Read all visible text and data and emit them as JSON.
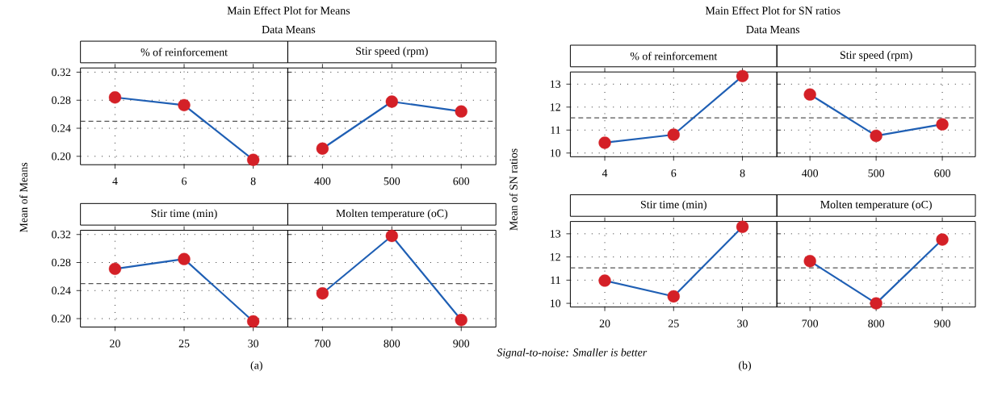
{
  "chart_data": [
    {
      "type": "line",
      "title": "% of reinforcement",
      "ylabel": "Mean of Means",
      "annotations": [
        "Main Effect Plot for Means",
        "Data Means",
        "(a)"
      ],
      "categories": [
        "4",
        "6",
        "8"
      ],
      "series": [
        {
          "color": "#1f5fb4",
          "colors": [
            "#d42027",
            "#d42027",
            "#d42027"
          ],
          "values": [
            0.284,
            0.273,
            0.195
          ]
        }
      ],
      "ylim": [
        0.188,
        0.326
      ],
      "yticks": [
        {
          "value": 0.2,
          "label": "0.20"
        },
        {
          "value": 0.24,
          "label": "0.24"
        },
        {
          "value": 0.28,
          "label": "0.28"
        },
        {
          "value": 0.32,
          "label": "0.32"
        }
      ],
      "ref_lines": [
        {
          "axis": "y",
          "value": 0.25,
          "color": "#555555",
          "line_style": "dashed"
        }
      ],
      "grid": true,
      "marker": "circle",
      "line_style": "solid"
    },
    {
      "type": "line",
      "title": "Stir speed (rpm)",
      "categories": [
        "400",
        "500",
        "600"
      ],
      "series": [
        {
          "color": "#1f5fb4",
          "colors": [
            "#d42027",
            "#d42027",
            "#d42027"
          ],
          "values": [
            0.211,
            0.278,
            0.264
          ]
        }
      ],
      "ylim": [
        0.188,
        0.326
      ],
      "yticks": [
        {
          "value": 0.2,
          "label": null
        },
        {
          "value": 0.24,
          "label": null
        },
        {
          "value": 0.28,
          "label": null
        },
        {
          "value": 0.32,
          "label": null
        }
      ],
      "ref_lines": [
        {
          "axis": "y",
          "value": 0.25,
          "color": "#555555",
          "line_style": "dashed"
        }
      ],
      "grid": true,
      "marker": "circle",
      "line_style": "solid",
      "tick_labels": "x"
    },
    {
      "type": "line",
      "title": "Stir time (min)",
      "categories": [
        "20",
        "25",
        "30"
      ],
      "series": [
        {
          "color": "#1f5fb4",
          "colors": [
            "#d42027",
            "#d42027",
            "#d42027"
          ],
          "values": [
            0.271,
            0.285,
            0.196
          ]
        }
      ],
      "ylim": [
        0.188,
        0.326
      ],
      "yticks": [
        {
          "value": 0.2,
          "label": "0.20"
        },
        {
          "value": 0.24,
          "label": "0.24"
        },
        {
          "value": 0.28,
          "label": "0.28"
        },
        {
          "value": 0.32,
          "label": "0.32"
        }
      ],
      "ref_lines": [
        {
          "axis": "y",
          "value": 0.25,
          "color": "#555555",
          "line_style": "dashed"
        }
      ],
      "grid": true,
      "marker": "circle",
      "line_style": "solid"
    },
    {
      "type": "line",
      "title": "Molten temperature (oC)",
      "categories": [
        "700",
        "800",
        "900"
      ],
      "series": [
        {
          "color": "#1f5fb4",
          "colors": [
            "#d42027",
            "#d42027",
            "#d42027"
          ],
          "values": [
            0.236,
            0.318,
            0.198
          ]
        }
      ],
      "ylim": [
        0.188,
        0.326
      ],
      "yticks": [
        {
          "value": 0.2,
          "label": null
        },
        {
          "value": 0.24,
          "label": null
        },
        {
          "value": 0.28,
          "label": null
        },
        {
          "value": 0.32,
          "label": null
        }
      ],
      "ref_lines": [
        {
          "axis": "y",
          "value": 0.25,
          "color": "#555555",
          "line_style": "dashed"
        }
      ],
      "grid": true,
      "marker": "circle",
      "line_style": "solid",
      "tick_labels": "x"
    },
    {
      "type": "line",
      "title": "% of reinforcement",
      "ylabel": "Mean of SN ratios",
      "annotations": [
        "Main Effect Plot for SN ratios",
        "Data Means",
        "Signal-to-noise: Smaller is better",
        "(b)"
      ],
      "categories": [
        "4",
        "6",
        "8"
      ],
      "series": [
        {
          "color": "#1f5fb4",
          "colors": [
            "#d42027",
            "#d42027",
            "#d42027"
          ],
          "values": [
            10.45,
            10.8,
            13.35
          ]
        }
      ],
      "ylim": [
        9.84,
        13.53
      ],
      "yticks": [
        10,
        11,
        12,
        13
      ],
      "ref_lines": [
        {
          "axis": "y",
          "value": 11.53,
          "color": "#555555",
          "line_style": "dashed"
        }
      ],
      "grid": true,
      "marker": "circle",
      "line_style": "solid"
    },
    {
      "type": "line",
      "title": "Stir speed (rpm)",
      "categories": [
        "400",
        "500",
        "600"
      ],
      "series": [
        {
          "color": "#1f5fb4",
          "colors": [
            "#d42027",
            "#d42027",
            "#d42027"
          ],
          "values": [
            12.55,
            10.75,
            11.25
          ]
        }
      ],
      "ylim": [
        9.84,
        13.53
      ],
      "yticks": [
        10,
        11,
        12,
        13
      ],
      "ref_lines": [
        {
          "axis": "y",
          "value": 11.53,
          "color": "#555555",
          "line_style": "dashed"
        }
      ],
      "grid": true,
      "marker": "circle",
      "line_style": "solid",
      "tick_labels": "x"
    },
    {
      "type": "line",
      "title": "Stir time (min)",
      "categories": [
        "20",
        "25",
        "30"
      ],
      "series": [
        {
          "color": "#1f5fb4",
          "colors": [
            "#d42027",
            "#d42027",
            "#d42027"
          ],
          "values": [
            10.98,
            10.3,
            13.3
          ]
        }
      ],
      "ylim": [
        9.84,
        13.53
      ],
      "yticks": [
        10,
        11,
        12,
        13
      ],
      "ref_lines": [
        {
          "axis": "y",
          "value": 11.53,
          "color": "#555555",
          "line_style": "dashed"
        }
      ],
      "grid": true,
      "marker": "circle",
      "line_style": "solid"
    },
    {
      "type": "line",
      "title": "Molten temperature (oC)",
      "categories": [
        "700",
        "800",
        "900"
      ],
      "series": [
        {
          "color": "#1f5fb4",
          "colors": [
            "#d42027",
            "#d42027",
            "#d42027"
          ],
          "values": [
            11.82,
            10.0,
            12.75
          ]
        }
      ],
      "ylim": [
        9.84,
        13.53
      ],
      "yticks": [
        10,
        11,
        12,
        13
      ],
      "ref_lines": [
        {
          "axis": "y",
          "value": 11.53,
          "color": "#555555",
          "line_style": "dashed"
        }
      ],
      "grid": true,
      "marker": "circle",
      "line_style": "solid",
      "tick_labels": "x"
    }
  ]
}
